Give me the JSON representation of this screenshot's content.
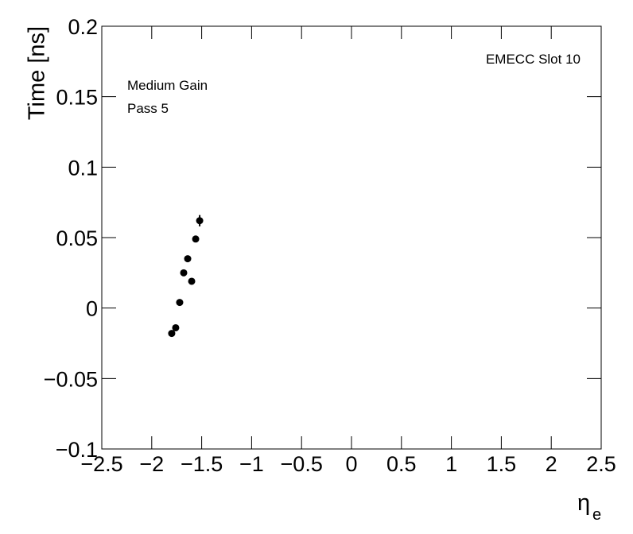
{
  "chart_data": {
    "type": "scatter",
    "ylabel": "Time [ns]",
    "xlabel_symbol": "η",
    "xlabel_subscript": "e",
    "annotations": [
      "EMECC Slot 10",
      "Medium Gain",
      "Pass 5"
    ],
    "x": [
      -1.8,
      -1.76,
      -1.72,
      -1.68,
      -1.64,
      -1.6,
      -1.56,
      -1.52
    ],
    "series": [
      {
        "name": "EMECC Slot 10",
        "color": "#000000",
        "values": [
          -0.018,
          -0.014,
          0.004,
          0.025,
          0.035,
          0.019,
          0.049,
          0.062
        ],
        "errors": [
          0.002,
          0.002,
          0.002,
          0.002,
          0.002,
          0.002,
          0.002,
          0.004
        ]
      }
    ],
    "xlim": [
      -2.5,
      2.5
    ],
    "ylim": [
      -0.1,
      0.2
    ],
    "xticks": [
      {
        "value": -2.5,
        "label": "−2.5"
      },
      {
        "value": -2,
        "label": "−2"
      },
      {
        "value": -1.5,
        "label": "−1.5"
      },
      {
        "value": -1,
        "label": "−1"
      },
      {
        "value": -0.5,
        "label": "−0.5"
      },
      0,
      0.5,
      1,
      1.5,
      2,
      2.5
    ],
    "yticks": [
      {
        "value": -0.1,
        "label": "−0.1"
      },
      {
        "value": -0.05,
        "label": "−0.05"
      },
      0,
      0.05,
      0.1,
      0.15,
      0.2
    ],
    "grid": false
  }
}
